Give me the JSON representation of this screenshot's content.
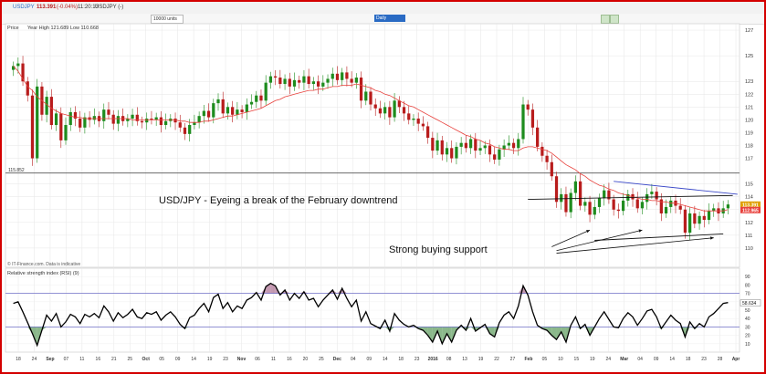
{
  "window": {
    "symbol": "USDJPY",
    "last": "113.391",
    "change": "(-0.04%)",
    "time": "11:20:13",
    "instrument": "USDJPY (-)"
  },
  "toolbar": {
    "units": "10000 units",
    "interval": "Daily"
  },
  "price_panel": {
    "label": "Price",
    "range_note": "Year High 121.689 Low 110.668",
    "watermark": "© IT-Finance.com. Data is indicative"
  },
  "rsi_panel": {
    "label": "Relative strength index (RSI) (9)",
    "rsi_value": "58.634"
  },
  "annotations": {
    "headline": "USD/JPY - Eyeing a break of the February downtrend",
    "support": "Strong buying support"
  },
  "colors": {
    "frame": "#d40000",
    "up": "#1e8c1e",
    "down": "#b81c1c",
    "ma": "#e8413c",
    "trendline": "#3b49c8",
    "rsi_line": "#000000",
    "rsi_band": "#7070c8",
    "rsi_over": "#b07898",
    "rsi_under": "#64a064"
  },
  "chart_data": [
    {
      "type": "candlestick",
      "title": "",
      "ylim": [
        108.5,
        127.5
      ],
      "y_ticks": [
        110,
        111,
        112,
        113,
        114,
        115,
        117,
        118,
        119,
        120,
        121,
        122,
        123,
        125,
        127
      ],
      "price_labels": {
        "current": "113.391",
        "moving_average": "112.965",
        "horizontal_level": "115.852"
      },
      "horizontal_level": 115.852,
      "x_tick_labels": [
        "18",
        "24",
        "Sep",
        "07",
        "11",
        "16",
        "21",
        "25",
        "Oct",
        "05",
        "09",
        "14",
        "19",
        "23",
        "Nov",
        "06",
        "11",
        "16",
        "20",
        "25",
        "Dec",
        "04",
        "09",
        "14",
        "18",
        "23",
        "2016",
        "08",
        "13",
        "19",
        "22",
        "27",
        "Feb",
        "05",
        "10",
        "15",
        "19",
        "24",
        "Mar",
        "04",
        "09",
        "14",
        "18",
        "23",
        "28",
        "Apr"
      ],
      "close": [
        124.2,
        124.4,
        123.0,
        121.9,
        117.0,
        122.6,
        120.4,
        121.8,
        119.6,
        120.5,
        118.4,
        119.6,
        120.6,
        120.1,
        119.4,
        120.2,
        120.0,
        120.3,
        119.9,
        120.8,
        120.4,
        119.7,
        120.3,
        119.9,
        120.1,
        120.4,
        119.9,
        119.8,
        120.1,
        120.0,
        120.2,
        119.6,
        119.9,
        120.1,
        119.8,
        119.4,
        118.9,
        119.6,
        119.8,
        120.3,
        120.7,
        120.2,
        121.3,
        121.6,
        120.5,
        121.0,
        120.4,
        120.8,
        120.6,
        121.2,
        121.4,
        121.9,
        121.5,
        122.9,
        123.4,
        123.3,
        122.8,
        123.2,
        122.6,
        123.1,
        122.9,
        123.4,
        122.8,
        123.0,
        122.6,
        122.9,
        123.2,
        123.6,
        123.1,
        123.7,
        123.2,
        122.9,
        123.3,
        121.5,
        122.2,
        121.2,
        120.9,
        120.5,
        121.0,
        120.2,
        121.5,
        121.0,
        120.5,
        120.0,
        120.1,
        119.7,
        119.5,
        118.6,
        117.6,
        118.4,
        117.3,
        117.8,
        117.0,
        117.9,
        118.2,
        117.8,
        118.5,
        117.6,
        117.8,
        118.0,
        117.3,
        116.9,
        117.7,
        118.0,
        118.2,
        117.8,
        118.5,
        121.2,
        120.8,
        119.4,
        117.9,
        117.2,
        116.7,
        115.6,
        113.6,
        114.2,
        112.8,
        114.3,
        115.2,
        113.3,
        113.6,
        112.6,
        113.2,
        113.9,
        114.5,
        113.8,
        113.0,
        112.9,
        113.7,
        114.2,
        113.8,
        113.1,
        113.6,
        114.2,
        114.4,
        113.8,
        112.7,
        113.2,
        113.7,
        113.3,
        113.0,
        111.2,
        112.7,
        111.9,
        112.5,
        112.2,
        112.9,
        113.1,
        112.7,
        113.1,
        113.4
      ],
      "moving_average": [
        124.2,
        123.8,
        123.2,
        122.6,
        122.3,
        121.8,
        121.5,
        121.2,
        120.9,
        120.7,
        120.5,
        120.4,
        120.3,
        120.2,
        120.2,
        120.1,
        120.1,
        120.1,
        120.1,
        120.1,
        120.1,
        120.1,
        120.1,
        120.1,
        120.1,
        120.0,
        120.0,
        120.0,
        120.0,
        120.0,
        120.0,
        120.0,
        120.0,
        120.0,
        120.0,
        119.9,
        119.9,
        119.8,
        119.8,
        119.8,
        119.9,
        119.9,
        120.0,
        120.1,
        120.2,
        120.3,
        120.3,
        120.4,
        120.5,
        120.6,
        120.7,
        120.8,
        120.9,
        121.1,
        121.3,
        121.5,
        121.6,
        121.8,
        121.9,
        122.0,
        122.1,
        122.2,
        122.3,
        122.3,
        122.4,
        122.4,
        122.5,
        122.6,
        122.6,
        122.7,
        122.7,
        122.7,
        122.8,
        122.7,
        122.6,
        122.5,
        122.3,
        122.2,
        122.0,
        121.9,
        121.7,
        121.5,
        121.3,
        121.1,
        121.0,
        120.8,
        120.6,
        120.4,
        120.2,
        120.0,
        119.8,
        119.6,
        119.4,
        119.2,
        119.0,
        118.8,
        118.7,
        118.5,
        118.4,
        118.2,
        118.1,
        117.9,
        117.8,
        117.7,
        117.7,
        117.6,
        117.6,
        117.8,
        117.9,
        117.9,
        117.8,
        117.7,
        117.6,
        117.4,
        117.1,
        116.8,
        116.5,
        116.3,
        116.1,
        115.8,
        115.6,
        115.3,
        115.1,
        114.9,
        114.8,
        114.6,
        114.5,
        114.3,
        114.2,
        114.1,
        114.0,
        113.9,
        113.8,
        113.8,
        113.7,
        113.7,
        113.6,
        113.6,
        113.5,
        113.5,
        113.4,
        113.3,
        113.2,
        113.1,
        113.0,
        112.9,
        112.9,
        112.9,
        112.9,
        112.9,
        113.0
      ],
      "trendlines": [
        {
          "name": "February downtrend",
          "from": [
            126,
            115.2
          ],
          "to": [
            152,
            114.2
          ]
        },
        {
          "name": "range top",
          "from": [
            108,
            113.8
          ],
          "to": [
            151,
            114.1
          ]
        },
        {
          "name": "support",
          "from": [
            122,
            110.6
          ],
          "to": [
            149,
            111.1
          ]
        }
      ],
      "annotation_arrows": [
        {
          "from": [
            113,
            110.1
          ],
          "to": [
            121,
            111.4
          ]
        },
        {
          "from": [
            114,
            109.8
          ],
          "to": [
            132,
            111.4
          ]
        },
        {
          "from": [
            114,
            109.6
          ],
          "to": [
            147,
            110.8
          ]
        }
      ]
    },
    {
      "type": "line",
      "title": "",
      "ylim": [
        0,
        100
      ],
      "y_ticks": [
        10,
        20,
        30,
        40,
        50,
        60,
        70,
        80,
        90
      ],
      "bands": [
        30,
        70
      ],
      "values": [
        58,
        60,
        48,
        35,
        22,
        8,
        26,
        44,
        37,
        46,
        30,
        36,
        45,
        42,
        34,
        45,
        42,
        46,
        41,
        55,
        48,
        37,
        47,
        41,
        45,
        51,
        42,
        40,
        47,
        45,
        48,
        38,
        44,
        48,
        42,
        33,
        28,
        41,
        44,
        52,
        58,
        48,
        65,
        69,
        52,
        59,
        48,
        55,
        52,
        62,
        65,
        71,
        62,
        78,
        82,
        79,
        68,
        74,
        62,
        70,
        64,
        72,
        62,
        64,
        54,
        62,
        68,
        74,
        63,
        76,
        64,
        54,
        62,
        37,
        48,
        34,
        31,
        28,
        38,
        25,
        46,
        38,
        33,
        30,
        32,
        28,
        26,
        20,
        12,
        25,
        10,
        22,
        12,
        26,
        32,
        26,
        40,
        25,
        29,
        33,
        22,
        18,
        35,
        44,
        48,
        40,
        55,
        79,
        68,
        48,
        32,
        28,
        26,
        20,
        15,
        24,
        12,
        32,
        42,
        28,
        33,
        20,
        30,
        40,
        48,
        39,
        30,
        29,
        40,
        47,
        42,
        32,
        40,
        49,
        51,
        42,
        28,
        36,
        44,
        38,
        34,
        18,
        36,
        28,
        34,
        30,
        42,
        46,
        52,
        58,
        59
      ],
      "current_label": "58.634"
    }
  ]
}
